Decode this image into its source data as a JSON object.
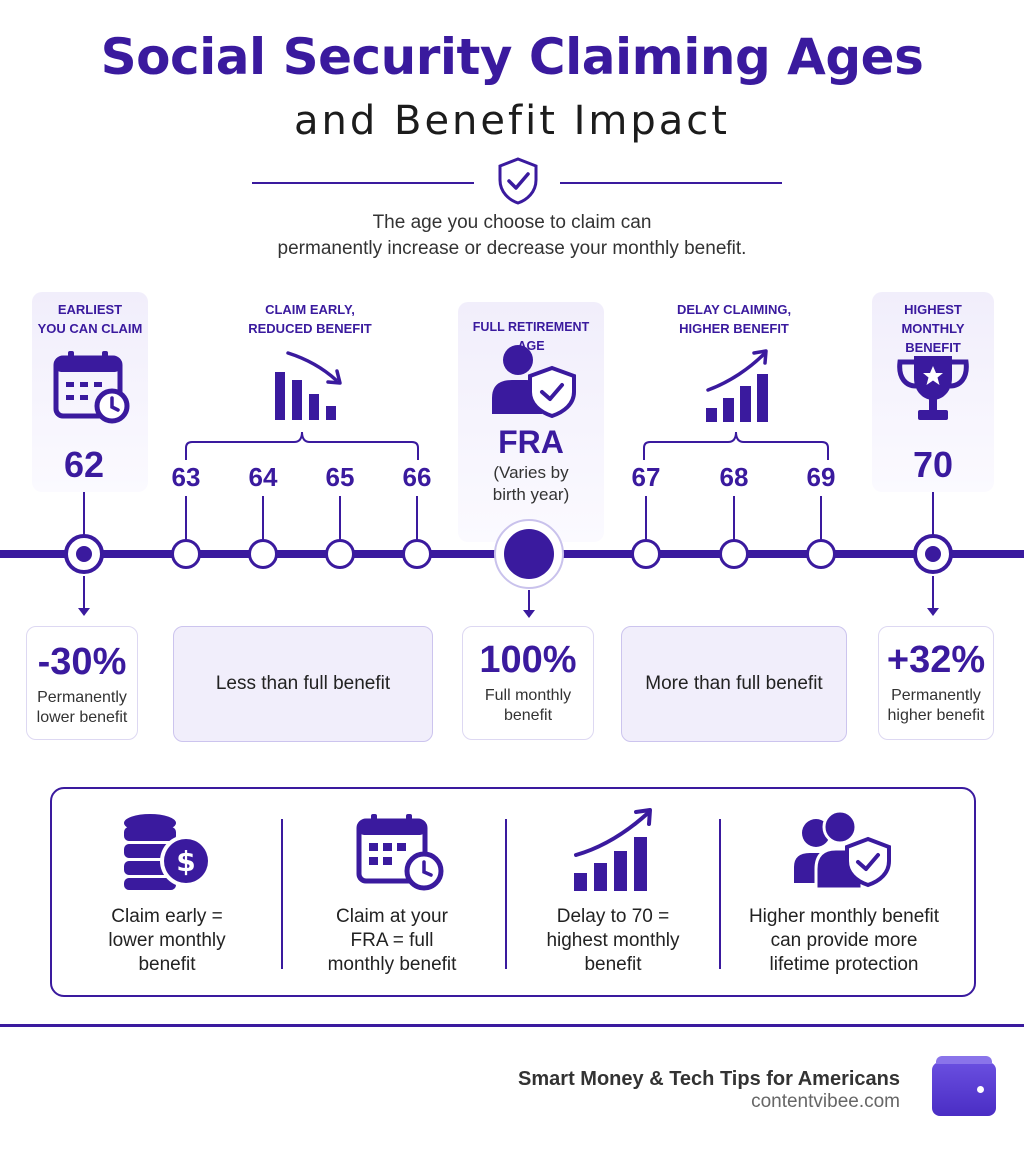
{
  "header": {
    "title": "Social Security Claiming Ages",
    "subtitle": "and Benefit Impact",
    "intro_line1": "The age you choose to claim can",
    "intro_line2": "permanently increase or decrease your monthly benefit."
  },
  "stages": {
    "earliest": {
      "label_line1": "EARLIEST",
      "label_line2": "YOU CAN CLAIM",
      "icon": "calendar-clock-icon",
      "age": "62"
    },
    "early": {
      "label_line1": "CLAIM EARLY,",
      "label_line2": "REDUCED BENEFIT",
      "icon": "declining-bar-chart-icon",
      "ages": [
        "63",
        "64",
        "65",
        "66"
      ]
    },
    "fra": {
      "label": "FULL RETIREMENT AGE",
      "icon": "person-shield-icon",
      "title": "FRA",
      "note_line1": "(Varies by",
      "note_line2": "birth year)"
    },
    "delay": {
      "label_line1": "DELAY CLAIMING,",
      "label_line2": "HIGHER BENEFIT",
      "icon": "rising-bar-chart-icon",
      "ages": [
        "67",
        "68",
        "69"
      ]
    },
    "highest": {
      "label_line1": "HIGHEST",
      "label_line2": "MONTHLY BENEFIT",
      "icon": "trophy-icon",
      "age": "70"
    }
  },
  "results": {
    "r62": {
      "pct": "-30%",
      "desc_line1": "Permanently",
      "desc_line2": "lower benefit"
    },
    "early": {
      "text": "Less than full benefit"
    },
    "fra": {
      "pct": "100%",
      "desc_line1": "Full monthly",
      "desc_line2": "benefit"
    },
    "delay": {
      "text": "More than full benefit"
    },
    "r70": {
      "pct": "+32%",
      "desc_line1": "Permanently",
      "desc_line2": "higher benefit"
    }
  },
  "summary": [
    {
      "icon": "coins-dollar-icon",
      "line1": "Claim early =",
      "line2": "lower monthly",
      "line3": "benefit"
    },
    {
      "icon": "calendar-clock-icon",
      "line1": "Claim at your",
      "line2": "FRA = full",
      "line3": "monthly benefit"
    },
    {
      "icon": "rising-bar-chart-icon",
      "line1": "Delay to 70 =",
      "line2": "highest monthly",
      "line3": "benefit"
    },
    {
      "icon": "people-shield-icon",
      "line1": "Higher monthly benefit",
      "line2": "can provide more",
      "line3": "lifetime protection"
    }
  ],
  "footer": {
    "brand": "Smart Money & Tech Tips for Americans",
    "url": "contentvibee.com",
    "icon": "wallet-icon"
  },
  "colors": {
    "accent": "#3a1a9e",
    "card_tint": "#f1eefb"
  }
}
